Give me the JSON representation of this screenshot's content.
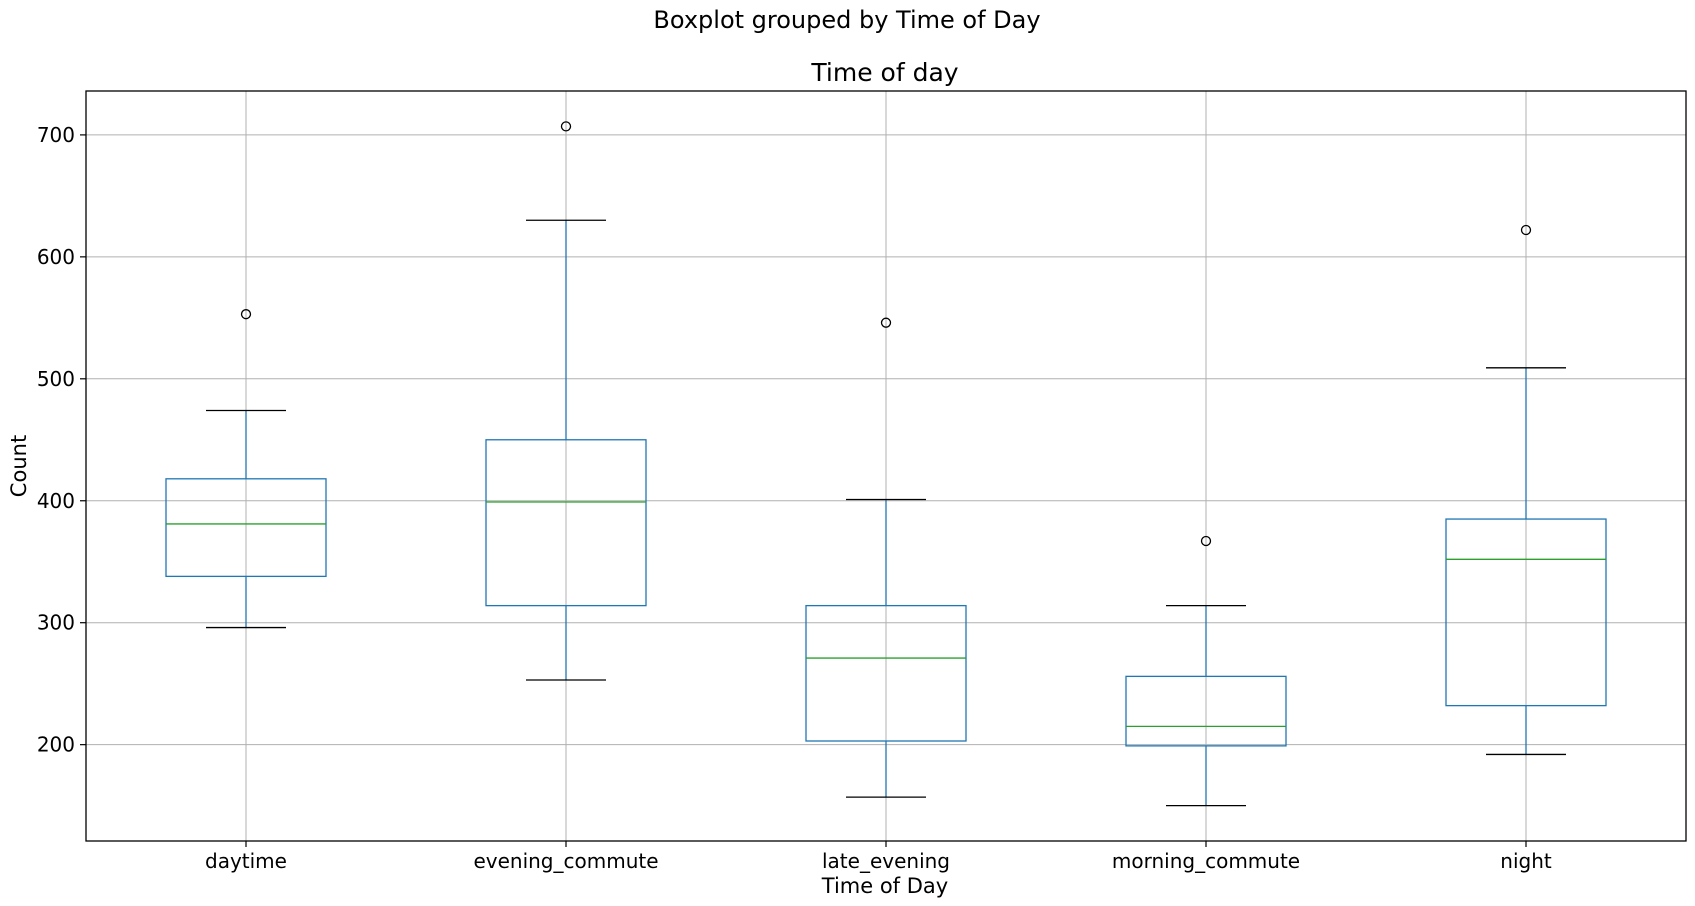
{
  "chart_data": {
    "type": "boxplot",
    "suptitle": "Boxplot grouped by Time of Day",
    "title": "Time of day",
    "xlabel": "Time of Day",
    "ylabel": "Count",
    "ylim": [
      121,
      736
    ],
    "yticks": [
      200,
      300,
      400,
      500,
      600,
      700
    ],
    "grid": true,
    "categories": [
      "daytime",
      "evening_commute",
      "late_evening",
      "morning_commute",
      "night"
    ],
    "boxes": [
      {
        "category": "daytime",
        "whisker_low": 296,
        "q1": 338,
        "median": 381,
        "q3": 418,
        "whisker_high": 474,
        "fliers": [
          553
        ]
      },
      {
        "category": "evening_commute",
        "whisker_low": 253,
        "q1": 314,
        "median": 399,
        "q3": 450,
        "whisker_high": 630,
        "fliers": [
          707
        ]
      },
      {
        "category": "late_evening",
        "whisker_low": 157,
        "q1": 203,
        "median": 271,
        "q3": 314,
        "whisker_high": 401,
        "fliers": [
          546
        ]
      },
      {
        "category": "morning_commute",
        "whisker_low": 150,
        "q1": 199,
        "median": 215,
        "q3": 256,
        "whisker_high": 314,
        "fliers": [
          367
        ]
      },
      {
        "category": "night",
        "whisker_low": 192,
        "q1": 232,
        "median": 352,
        "q3": 385,
        "whisker_high": 509,
        "fliers": [
          622
        ]
      }
    ],
    "colors": {
      "box": "#1f77b4",
      "median": "#2ca02c",
      "cap": "#000000",
      "grid": "#b0b0b0"
    }
  }
}
